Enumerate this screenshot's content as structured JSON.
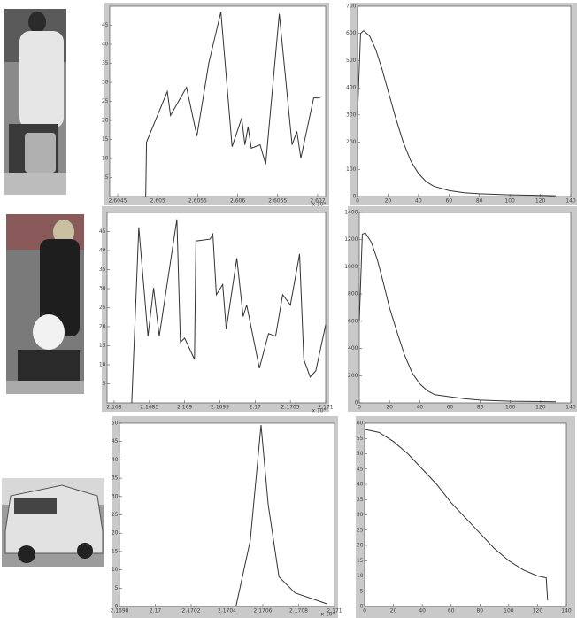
{
  "chart_data": [
    {
      "type": "line",
      "x_exponent_label": "x 10⁴",
      "x": [
        2.60485,
        2.60486,
        2.60512,
        2.60516,
        2.60536,
        2.60549,
        2.60564,
        2.60579,
        2.60593,
        2.60605,
        2.60609,
        2.60613,
        2.60617,
        2.60628,
        2.60635,
        2.60652,
        2.60668,
        2.60674,
        2.60679,
        2.60695,
        2.60703
      ],
      "values": [
        0,
        14.3,
        27.6,
        21.3,
        28.7,
        15.9,
        35.2,
        48.5,
        13.1,
        20.6,
        13.6,
        18.3,
        12.7,
        13.6,
        8.5,
        48.0,
        13.6,
        17.1,
        10.1,
        25.9,
        25.9
      ],
      "xlim": [
        2.6044,
        2.6071
      ],
      "ylim": [
        0,
        50
      ],
      "xticks": [
        2.6045,
        2.605,
        2.6055,
        2.606,
        2.6065,
        2.607
      ],
      "yticks": [
        5,
        10,
        15,
        20,
        25,
        30,
        35,
        40,
        45
      ],
      "color": "#333333"
    },
    {
      "type": "line",
      "x": [
        0,
        2,
        4,
        8,
        12,
        16,
        20,
        25,
        30,
        35,
        40,
        45,
        50,
        60,
        70,
        80,
        100,
        120,
        130
      ],
      "values": [
        300,
        600,
        610,
        590,
        540,
        470,
        390,
        290,
        200,
        130,
        85,
        55,
        38,
        22,
        14,
        10,
        6,
        4,
        3
      ],
      "xlim": [
        0,
        140
      ],
      "ylim": [
        0,
        700
      ],
      "xticks": [
        0,
        20,
        40,
        60,
        80,
        100,
        120,
        140
      ],
      "yticks": [
        0,
        100,
        200,
        300,
        400,
        500,
        600,
        700
      ],
      "color": "#333333"
    },
    {
      "type": "line",
      "x_exponent_label": "x 10⁴",
      "x": [
        2.16825,
        2.16835,
        2.16848,
        2.16856,
        2.16864,
        2.16889,
        2.16894,
        2.169,
        2.16914,
        2.16916,
        2.16936,
        2.1694,
        2.16945,
        2.16954,
        2.16959,
        2.16974,
        2.16983,
        2.16988,
        2.17006,
        2.17019,
        2.17029,
        2.17039,
        2.1705,
        2.17063,
        2.17069,
        2.17078,
        2.17086,
        2.171
      ],
      "values": [
        0,
        46.1,
        17.5,
        30.2,
        17.5,
        48.2,
        15.9,
        17.0,
        11.4,
        42.5,
        43.0,
        44.3,
        28.4,
        31.1,
        19.3,
        38.0,
        22.7,
        25.7,
        9.1,
        18.2,
        17.5,
        28.4,
        25.7,
        39.1,
        11.4,
        6.8,
        8.4,
        20.5
      ],
      "xlim": [
        2.1679,
        2.171
      ],
      "ylim": [
        0,
        50
      ],
      "xticks": [
        2.168,
        2.1685,
        2.169,
        2.1695,
        2.17,
        2.1705,
        2.171
      ],
      "yticks": [
        5,
        10,
        15,
        20,
        25,
        30,
        35,
        40,
        45
      ],
      "color": "#333333"
    },
    {
      "type": "line",
      "x": [
        0,
        2,
        4,
        8,
        12,
        16,
        20,
        25,
        30,
        35,
        40,
        45,
        50,
        60,
        70,
        80,
        100,
        120,
        130
      ],
      "values": [
        600,
        1240,
        1250,
        1180,
        1050,
        880,
        700,
        520,
        350,
        220,
        140,
        90,
        60,
        45,
        30,
        20,
        12,
        10,
        8
      ],
      "xlim": [
        0,
        140
      ],
      "ylim": [
        0,
        1400
      ],
      "xticks": [
        0,
        20,
        40,
        60,
        80,
        100,
        120,
        140
      ],
      "yticks": [
        0,
        200,
        400,
        600,
        800,
        1000,
        1200,
        1400
      ],
      "color": "#333333"
    },
    {
      "type": "line",
      "x_exponent_label": "x 10⁴",
      "x": [
        2.17045,
        2.17053,
        2.17059,
        2.17063,
        2.17069,
        2.17078,
        2.17096
      ],
      "values": [
        0,
        18,
        49.5,
        27.8,
        8.1,
        3.7,
        0.7
      ],
      "xlim": [
        2.1698,
        2.171
      ],
      "ylim": [
        0,
        50
      ],
      "xticks": [
        2.1698,
        2.17,
        2.1702,
        2.1704,
        2.1706,
        2.1708,
        2.171
      ],
      "yticks": [
        0,
        5,
        10,
        15,
        20,
        25,
        30,
        35,
        40,
        45,
        50
      ],
      "color": "#333333"
    },
    {
      "type": "line",
      "x": [
        0,
        10,
        20,
        30,
        40,
        50,
        60,
        70,
        80,
        90,
        100,
        110,
        120,
        125,
        126,
        127
      ],
      "values": [
        58,
        57,
        54,
        50,
        45,
        40,
        34,
        29,
        24,
        19,
        15,
        12,
        10,
        9.5,
        9.4,
        2
      ],
      "xlim": [
        0,
        140
      ],
      "ylim": [
        0,
        60
      ],
      "xticks": [
        0,
        20,
        40,
        60,
        80,
        100,
        120,
        140
      ],
      "yticks": [
        0,
        5,
        10,
        15,
        20,
        25,
        30,
        35,
        40,
        45,
        50,
        55,
        60
      ],
      "color": "#333333"
    }
  ]
}
